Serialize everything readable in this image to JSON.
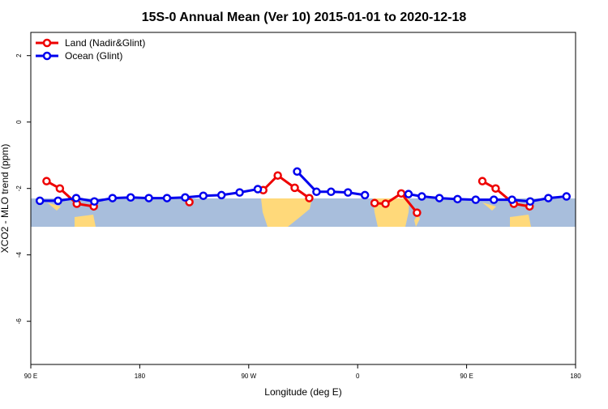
{
  "chart_data": {
    "type": "line",
    "title": "15S-0 Annual Mean (Ver 10)   2015-01-01 to 2020-12-18",
    "x_label": "Longitude (deg E)",
    "y_label": "XCO2 - MLO trend (ppm)",
    "xlim": [
      90,
      540
    ],
    "ylim": [
      -7.3,
      2.7
    ],
    "xticks": [
      {
        "value": 90,
        "label": "90 E"
      },
      180,
      {
        "value": 270,
        "label": "90 W"
      },
      {
        "value": 360,
        "label": "0"
      },
      {
        "value": 450,
        "label": "90 E"
      },
      {
        "value": 540,
        "label": "180"
      }
    ],
    "yticks": [
      2,
      0,
      -2,
      -4,
      -6
    ],
    "legend": "top-left",
    "series": [
      {
        "name": "Land (Nadir&Glint)",
        "color": "#ee0000",
        "x": [
          103,
          114,
          128,
          142,
          null,
          221,
          null,
          282,
          294,
          308,
          320,
          null,
          374,
          383,
          396,
          409,
          null,
          463,
          474,
          489,
          502
        ],
        "values": [
          -1.78,
          -2.0,
          -2.46,
          -2.54,
          null,
          -2.41,
          null,
          -2.05,
          -1.61,
          -1.98,
          -2.29,
          null,
          -2.44,
          -2.46,
          -2.15,
          -2.73,
          null,
          -1.78,
          -2.0,
          -2.46,
          -2.54
        ]
      },
      {
        "name": "Ocean (Glint)",
        "color": "#0000ee",
        "x": [
          97.5,
          112.5,
          127.5,
          142.5,
          157.5,
          172.5,
          187.5,
          202.5,
          217.5,
          232.5,
          247.5,
          262.5,
          277.5,
          null,
          310,
          326,
          338,
          352,
          366,
          null,
          402,
          413,
          427.5,
          442.5,
          457.5,
          472.5,
          487.5,
          502.5,
          517.5,
          532.5
        ],
        "values": [
          -2.37,
          -2.37,
          -2.29,
          -2.39,
          -2.29,
          -2.27,
          -2.29,
          -2.29,
          -2.27,
          -2.22,
          -2.2,
          -2.12,
          -2.02,
          null,
          -1.49,
          -2.1,
          -2.1,
          -2.12,
          -2.2,
          null,
          -2.17,
          -2.24,
          -2.29,
          -2.32,
          -2.34,
          -2.34,
          -2.34,
          -2.39,
          -2.29,
          -2.24
        ]
      }
    ]
  }
}
